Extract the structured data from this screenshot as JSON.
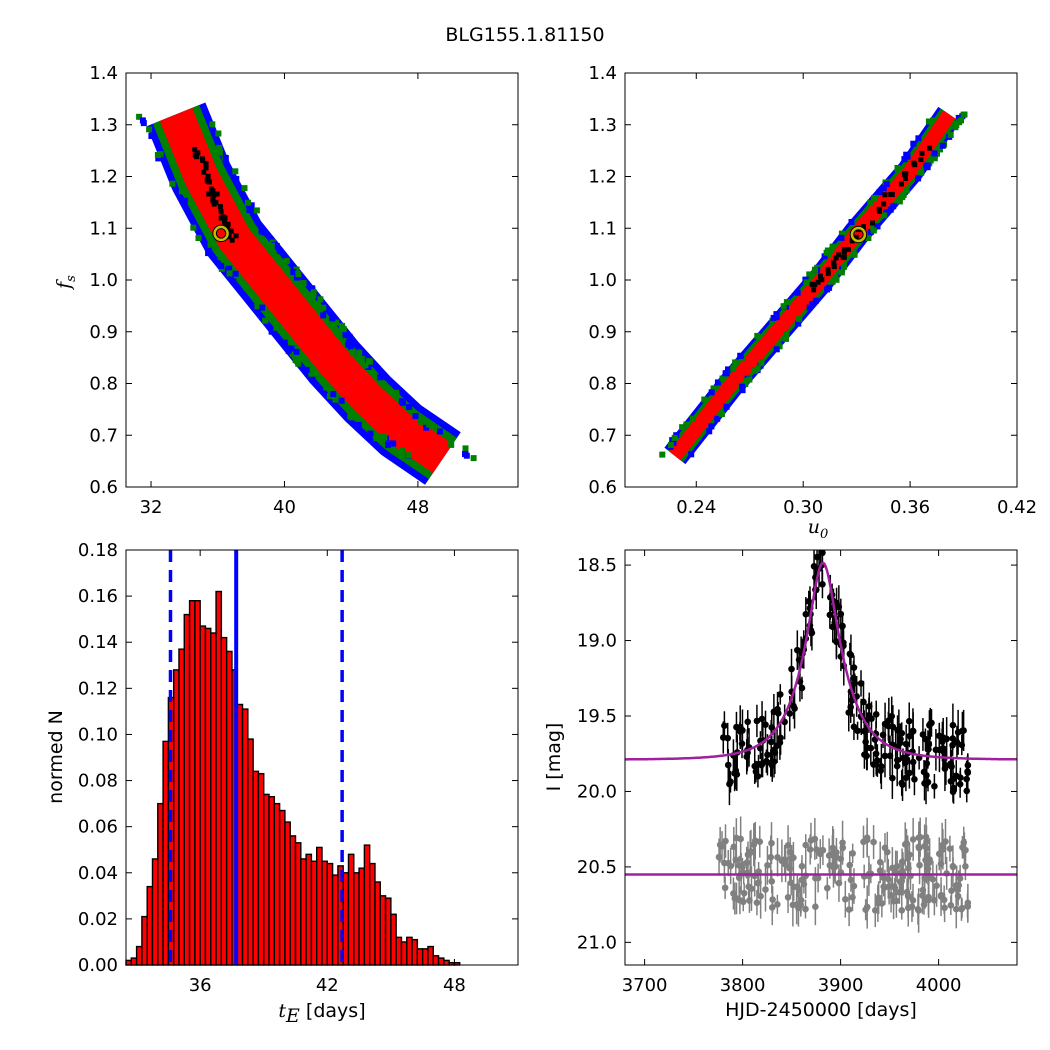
{
  "figure": {
    "title": "BLG155.1.81150"
  },
  "chart_data": [
    {
      "id": "fs-vs-tE",
      "type": "heatmap",
      "xlabel": "",
      "ylabel": "f",
      "ylabel_sub": "s",
      "xlim": [
        30.5,
        54
      ],
      "ylim": [
        0.6,
        1.4
      ],
      "xticks": [
        "32",
        "40",
        "48"
      ],
      "xtick_values": [
        32,
        40,
        48
      ],
      "yticks": [
        "0.6",
        "0.7",
        "0.8",
        "0.9",
        "1.0",
        "1.1",
        "1.2",
        "1.3",
        "1.4"
      ],
      "ytick_values": [
        0.6,
        0.7,
        0.8,
        0.9,
        1.0,
        1.1,
        1.2,
        1.3,
        1.4
      ],
      "regions_colors": {
        "outer": "#0000ff",
        "middle": "#008000",
        "inner": "#ff0000",
        "core": "#000000"
      },
      "ridge": [
        [
          33.5,
          1.32
        ],
        [
          35,
          1.2
        ],
        [
          37,
          1.08
        ],
        [
          39,
          1.0
        ],
        [
          41,
          0.92
        ],
        [
          43,
          0.84
        ],
        [
          45,
          0.77
        ],
        [
          47,
          0.71
        ],
        [
          49.5,
          0.655
        ]
      ],
      "half_widths": {
        "outer": 1.9,
        "middle": 1.5,
        "inner": 1.05
      },
      "core_segment": [
        [
          34.5,
          1.27
        ],
        [
          37,
          1.07
        ]
      ],
      "best_fit": {
        "x": 36.2,
        "y": 1.09,
        "color": "#bfbf00"
      }
    },
    {
      "id": "fs-vs-u0",
      "type": "heatmap",
      "xlabel": "u",
      "xlabel_sub": "0",
      "ylabel": "",
      "xlim": [
        0.2,
        0.42
      ],
      "ylim": [
        0.6,
        1.4
      ],
      "xticks": [
        "0.24",
        "0.30",
        "0.36",
        "0.42"
      ],
      "xtick_values": [
        0.24,
        0.3,
        0.36,
        0.42
      ],
      "yticks": [
        "0.6",
        "0.7",
        "0.8",
        "0.9",
        "1.0",
        "1.1",
        "1.2",
        "1.3",
        "1.4"
      ],
      "ytick_values": [
        0.6,
        0.7,
        0.8,
        0.9,
        1.0,
        1.1,
        1.2,
        1.3,
        1.4
      ],
      "regions_colors": {
        "outer": "#0000ff",
        "middle": "#008000",
        "inner": "#ff0000",
        "core": "#000000"
      },
      "ridge": [
        [
          0.228,
          0.66
        ],
        [
          0.26,
          0.8
        ],
        [
          0.29,
          0.92
        ],
        [
          0.31,
          1.0
        ],
        [
          0.33,
          1.09
        ],
        [
          0.36,
          1.21
        ],
        [
          0.382,
          1.32
        ]
      ],
      "half_widths": {
        "outer": 0.0075,
        "middle": 0.0058,
        "inner": 0.004
      },
      "core_segment": [
        [
          0.305,
          0.98
        ],
        [
          0.37,
          1.25
        ]
      ],
      "best_fit": {
        "x": 0.331,
        "y": 1.088,
        "color": "#bfbf00"
      }
    },
    {
      "id": "tE-histogram",
      "type": "bar",
      "xlabel": " [days]",
      "xlabel_math": "t",
      "xlabel_sub": "E",
      "ylabel": "normed N",
      "xlim": [
        32.5,
        51
      ],
      "ylim": [
        0,
        0.18
      ],
      "xticks": [
        "36",
        "42",
        "48"
      ],
      "xtick_values": [
        36,
        42,
        48
      ],
      "yticks": [
        "0.00",
        "0.02",
        "0.04",
        "0.06",
        "0.08",
        "0.10",
        "0.12",
        "0.14",
        "0.16",
        "0.18"
      ],
      "ytick_values": [
        0,
        0.02,
        0.04,
        0.06,
        0.08,
        0.1,
        0.12,
        0.14,
        0.16,
        0.18
      ],
      "bin_start": 32.5,
      "bin_width": 0.25,
      "values": [
        0.002,
        0.003,
        0.008,
        0.021,
        0.034,
        0.046,
        0.07,
        0.097,
        0.116,
        0.128,
        0.137,
        0.152,
        0.158,
        0.158,
        0.147,
        0.146,
        0.144,
        0.162,
        0.142,
        0.136,
        0.128,
        0.113,
        0.111,
        0.098,
        0.084,
        0.083,
        0.074,
        0.073,
        0.07,
        0.067,
        0.062,
        0.056,
        0.053,
        0.046,
        0.048,
        0.045,
        0.051,
        0.045,
        0.044,
        0.039,
        0.043,
        0.04,
        0.048,
        0.04,
        0.042,
        0.052,
        0.044,
        0.036,
        0.03,
        0.029,
        0.022,
        0.012,
        0.01,
        0.012,
        0.011,
        0.007,
        0.007,
        0.008,
        0.004,
        0.003,
        0.002,
        0.001,
        0.001,
        0.0,
        0.0,
        0.0,
        0.0,
        0.0,
        0.0,
        0.0,
        0.0,
        0.0,
        0.0,
        0.0
      ],
      "bar_color": "#ff0000",
      "median_line": 37.7,
      "interval_lines": [
        34.6,
        42.7
      ],
      "line_color": "#0000ff"
    },
    {
      "id": "light-curve",
      "type": "scatter",
      "xlabel": "HJD-2450000 [days]",
      "ylabel": "I [mag]",
      "xlim": [
        3680,
        4080
      ],
      "ylim": [
        21.15,
        18.4
      ],
      "xticks": [
        "3700",
        "3800",
        "3900",
        "4000"
      ],
      "xtick_values": [
        3700,
        3800,
        3900,
        4000
      ],
      "yticks": [
        "18.5",
        "19.0",
        "19.5",
        "20.0",
        "20.5",
        "21.0"
      ],
      "ytick_values": [
        18.5,
        19.0,
        19.5,
        20.0,
        20.5,
        21.0
      ],
      "model": {
        "t0": 3882,
        "tE": 38,
        "u0": 0.332,
        "baseline": 19.79,
        "fs": 1.09,
        "color": "#a020a0"
      },
      "residual_line": {
        "level": 20.55,
        "color": "#a020a0"
      },
      "data_color": "#000000",
      "residual_color": "#808080",
      "time_range": [
        3775,
        4030
      ],
      "n_points": 220
    }
  ]
}
